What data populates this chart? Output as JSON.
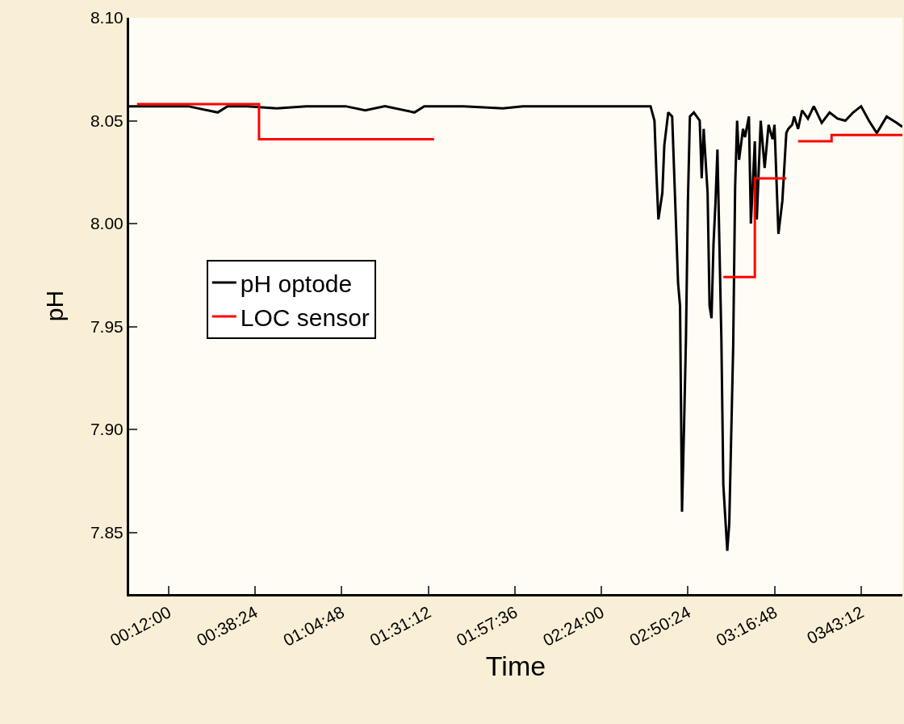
{
  "chart_data": {
    "type": "line",
    "xlabel": "Time",
    "ylabel": "pH",
    "xlim": [
      0,
      3.93
    ],
    "ylim": [
      7.82,
      8.1
    ],
    "xticks": [
      {
        "value": 0.2,
        "label": "00:12:00"
      },
      {
        "value": 0.64,
        "label": "00:38:24"
      },
      {
        "value": 1.08,
        "label": "01:04:48"
      },
      {
        "value": 1.52,
        "label": "01:31:12"
      },
      {
        "value": 1.96,
        "label": "01:57:36"
      },
      {
        "value": 2.4,
        "label": "02:24:00"
      },
      {
        "value": 2.84,
        "label": "02:50:24"
      },
      {
        "value": 3.28,
        "label": "03:16:48"
      },
      {
        "value": 3.72,
        "label": "0343:12"
      }
    ],
    "yticks": [
      {
        "value": 7.85,
        "label": "7.85"
      },
      {
        "value": 7.9,
        "label": "7.90"
      },
      {
        "value": 7.95,
        "label": "7.95"
      },
      {
        "value": 8.0,
        "label": "8.00"
      },
      {
        "value": 8.05,
        "label": "8.05"
      },
      {
        "value": 8.1,
        "label": "8.10"
      }
    ],
    "grid": false,
    "legend": "left",
    "marker": "none",
    "series": [
      {
        "name": "pH optode",
        "color": "#000000",
        "x": [
          0,
          0.3,
          0.45,
          0.5,
          0.6,
          0.75,
          0.9,
          1.1,
          1.2,
          1.3,
          1.45,
          1.5,
          1.7,
          1.9,
          2.0,
          2.2,
          2.4,
          2.6,
          2.65,
          2.67,
          2.68,
          2.69,
          2.71,
          2.72,
          2.74,
          2.76,
          2.79,
          2.8,
          2.81,
          2.82,
          2.83,
          2.84,
          2.85,
          2.87,
          2.9,
          2.91,
          2.92,
          2.94,
          2.95,
          2.96,
          2.97,
          2.98,
          2.99,
          3.0,
          3.01,
          3.02,
          3.04,
          3.05,
          3.07,
          3.08,
          3.09,
          3.1,
          3.12,
          3.13,
          3.15,
          3.16,
          3.18,
          3.19,
          3.21,
          3.23,
          3.25,
          3.27,
          3.28,
          3.3,
          3.32,
          3.34,
          3.35,
          3.37,
          3.38,
          3.4,
          3.42,
          3.45,
          3.48,
          3.52,
          3.56,
          3.6,
          3.64,
          3.68,
          3.72,
          3.76,
          3.8,
          3.85,
          3.9,
          3.93
        ],
        "values": [
          8.057,
          8.057,
          8.054,
          8.057,
          8.057,
          8.056,
          8.057,
          8.057,
          8.055,
          8.057,
          8.054,
          8.057,
          8.057,
          8.056,
          8.057,
          8.057,
          8.057,
          8.057,
          8.057,
          8.05,
          8.024,
          8.002,
          8.015,
          8.038,
          8.054,
          8.052,
          7.971,
          7.96,
          7.86,
          7.9,
          7.944,
          8.011,
          8.052,
          8.054,
          8.05,
          8.022,
          8.046,
          8.015,
          7.96,
          7.954,
          7.99,
          8.01,
          8.036,
          7.99,
          7.944,
          7.873,
          7.841,
          7.854,
          7.94,
          8.018,
          8.05,
          8.031,
          8.046,
          8.042,
          8.052,
          8.0,
          8.04,
          8.002,
          8.05,
          8.027,
          8.048,
          8.041,
          8.048,
          7.995,
          8.011,
          8.044,
          8.046,
          8.048,
          8.052,
          8.046,
          8.055,
          8.051,
          8.057,
          8.049,
          8.054,
          8.051,
          8.05,
          8.054,
          8.057,
          8.05,
          8.044,
          8.052,
          8.049,
          8.047
        ]
      },
      {
        "name": "LOC sensor",
        "color": "#ff0000",
        "type": "step",
        "x": [
          0.04,
          0.66,
          1.55,
          2.0,
          3.02,
          3.18,
          3.34,
          3.37,
          3.4,
          3.57,
          3.93
        ],
        "values": [
          8.058,
          8.041,
          8.041,
          null,
          7.974,
          8.022,
          8.022,
          null,
          8.04,
          8.043,
          8.043
        ]
      }
    ]
  }
}
